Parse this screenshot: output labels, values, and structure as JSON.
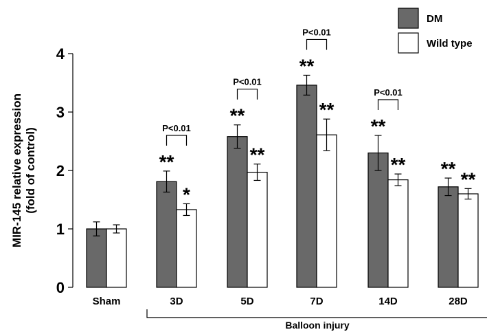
{
  "chart_data": {
    "type": "bar",
    "title": "",
    "xlabel": "",
    "ylabel": [
      "MIR-145 relative expression",
      "(fold of control)"
    ],
    "ylim": [
      0,
      4
    ],
    "yticks": [
      0,
      1,
      2,
      3,
      4
    ],
    "grid": false,
    "legend_position": "top-right",
    "categories": [
      "Sham",
      "3D",
      "5D",
      "7D",
      "14D",
      "28D"
    ],
    "series": [
      {
        "name": "DM",
        "color": "#696969",
        "values": [
          1.0,
          1.81,
          2.58,
          3.46,
          2.3,
          1.72
        ],
        "errors": [
          0.12,
          0.18,
          0.2,
          0.17,
          0.3,
          0.15
        ],
        "significance": [
          "",
          "**",
          "**",
          "**",
          "**",
          "**"
        ]
      },
      {
        "name": "Wild type",
        "color": "#ffffff",
        "values": [
          1.0,
          1.33,
          1.97,
          2.61,
          1.84,
          1.6
        ],
        "errors": [
          0.07,
          0.1,
          0.14,
          0.27,
          0.1,
          0.09
        ],
        "significance": [
          "",
          "*",
          "**",
          "**",
          "**",
          "**"
        ]
      }
    ],
    "comparisons": [
      {
        "category": "3D",
        "label": "P<0.01"
      },
      {
        "category": "5D",
        "label": "P<0.01"
      },
      {
        "category": "7D",
        "label": "P<0.01"
      },
      {
        "category": "14D",
        "label": "P<0.01"
      }
    ],
    "group_bracket": {
      "from": "3D",
      "to": "28D",
      "label": "Balloon injury"
    }
  }
}
